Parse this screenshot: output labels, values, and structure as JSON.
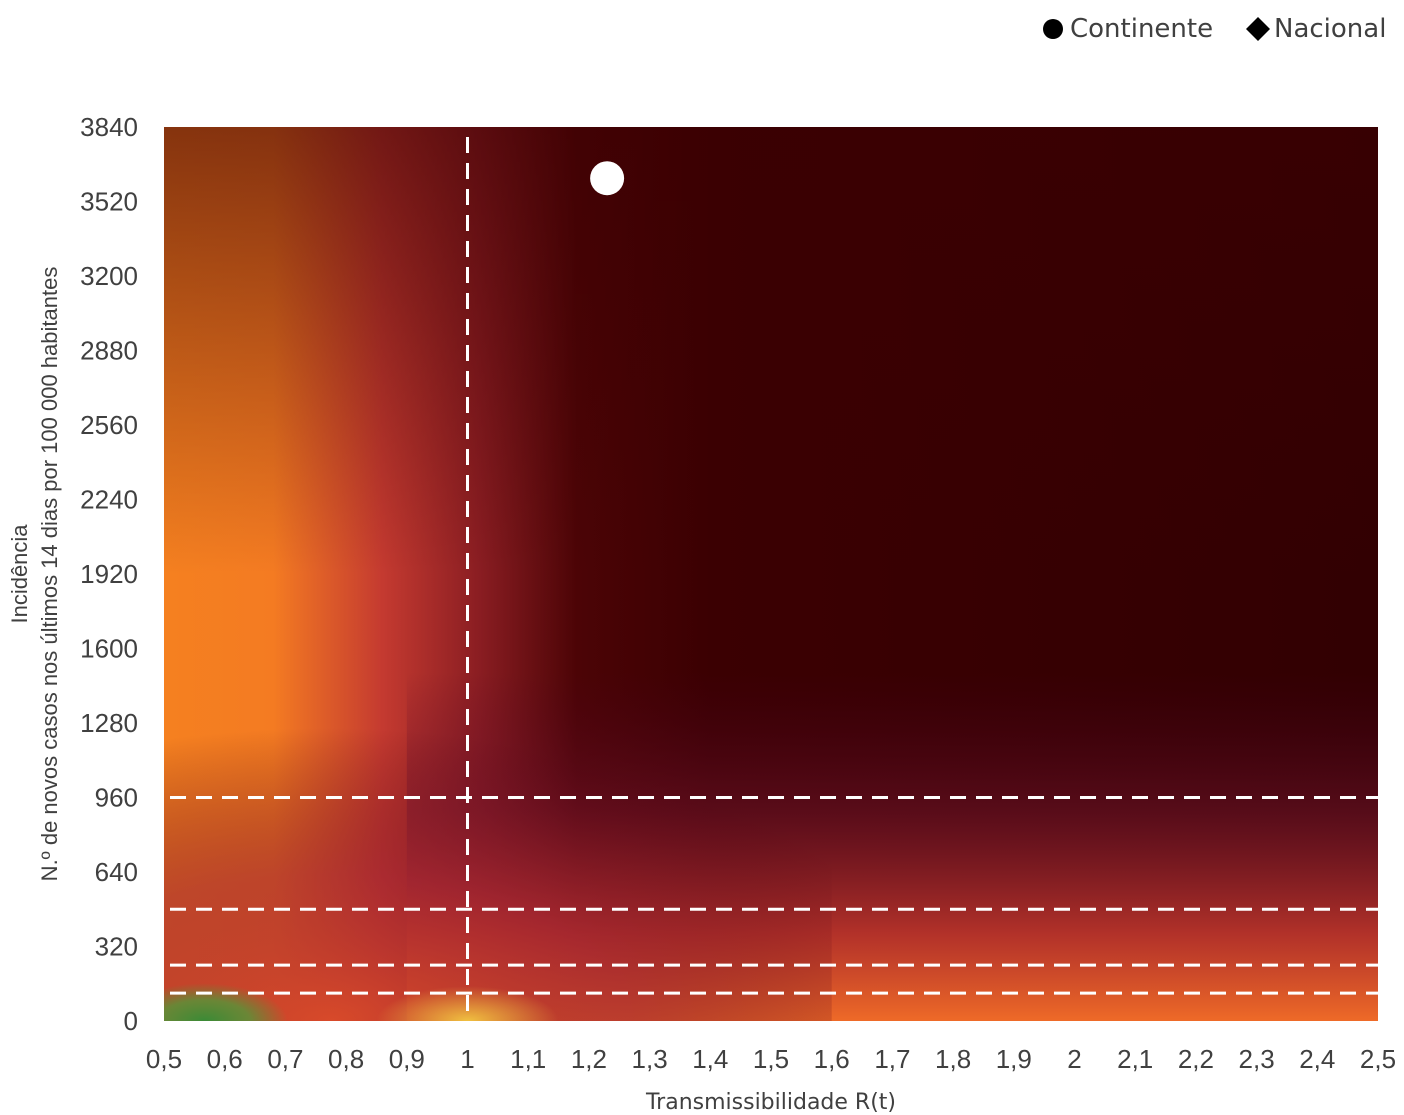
{
  "chart_data": {
    "type": "heatmap",
    "title": "",
    "xlabel": "Transmissibilidade R(t)",
    "ylabel_lines": [
      "Incidência",
      "N.º de novos casos nos últimos 14 dias por 100 000 habitantes"
    ],
    "xlim": [
      0.5,
      2.5
    ],
    "ylim": [
      0,
      3840
    ],
    "x_ticks": [
      {
        "v": 0.5,
        "label": "0,5"
      },
      {
        "v": 0.6,
        "label": "0,6"
      },
      {
        "v": 0.7,
        "label": "0,7"
      },
      {
        "v": 0.8,
        "label": "0,8"
      },
      {
        "v": 0.9,
        "label": "0,9"
      },
      {
        "v": 1.0,
        "label": "1"
      },
      {
        "v": 1.1,
        "label": "1,1"
      },
      {
        "v": 1.2,
        "label": "1,2"
      },
      {
        "v": 1.3,
        "label": "1,3"
      },
      {
        "v": 1.4,
        "label": "1,4"
      },
      {
        "v": 1.5,
        "label": "1,5"
      },
      {
        "v": 1.6,
        "label": "1,6"
      },
      {
        "v": 1.7,
        "label": "1,7"
      },
      {
        "v": 1.8,
        "label": "1,8"
      },
      {
        "v": 1.9,
        "label": "1,9"
      },
      {
        "v": 2.0,
        "label": "2"
      },
      {
        "v": 2.1,
        "label": "2,1"
      },
      {
        "v": 2.2,
        "label": "2,2"
      },
      {
        "v": 2.3,
        "label": "2,3"
      },
      {
        "v": 2.4,
        "label": "2,4"
      },
      {
        "v": 2.5,
        "label": "2,5"
      }
    ],
    "y_ticks": [
      0,
      320,
      640,
      960,
      1280,
      1600,
      1920,
      2240,
      2560,
      2880,
      3200,
      3520,
      3840
    ],
    "reference_lines": {
      "vertical_x": [
        1.0
      ],
      "horizontal_y": [
        120,
        240,
        480,
        960
      ]
    },
    "series": [
      {
        "name": "Continente",
        "marker": "circle",
        "color": "#ffffff",
        "points": [
          {
            "x": 1.23,
            "y": 3620
          }
        ]
      },
      {
        "name": "Nacional",
        "marker": "diamond",
        "color": "#ffffff",
        "points": []
      }
    ],
    "legend": {
      "position": "top-right",
      "entries": [
        {
          "label": "Continente",
          "marker": "circle",
          "color": "#000000"
        },
        {
          "label": "Nacional",
          "marker": "diamond",
          "color": "#000000"
        }
      ]
    },
    "colors": {
      "green": "#3a8a36",
      "yellow": "#f0b83c",
      "orange": "#f58020",
      "red": "#a8272e",
      "dark_red": "#3b0002",
      "purple": "#4a0024",
      "reference_line": "#ffffff"
    }
  }
}
